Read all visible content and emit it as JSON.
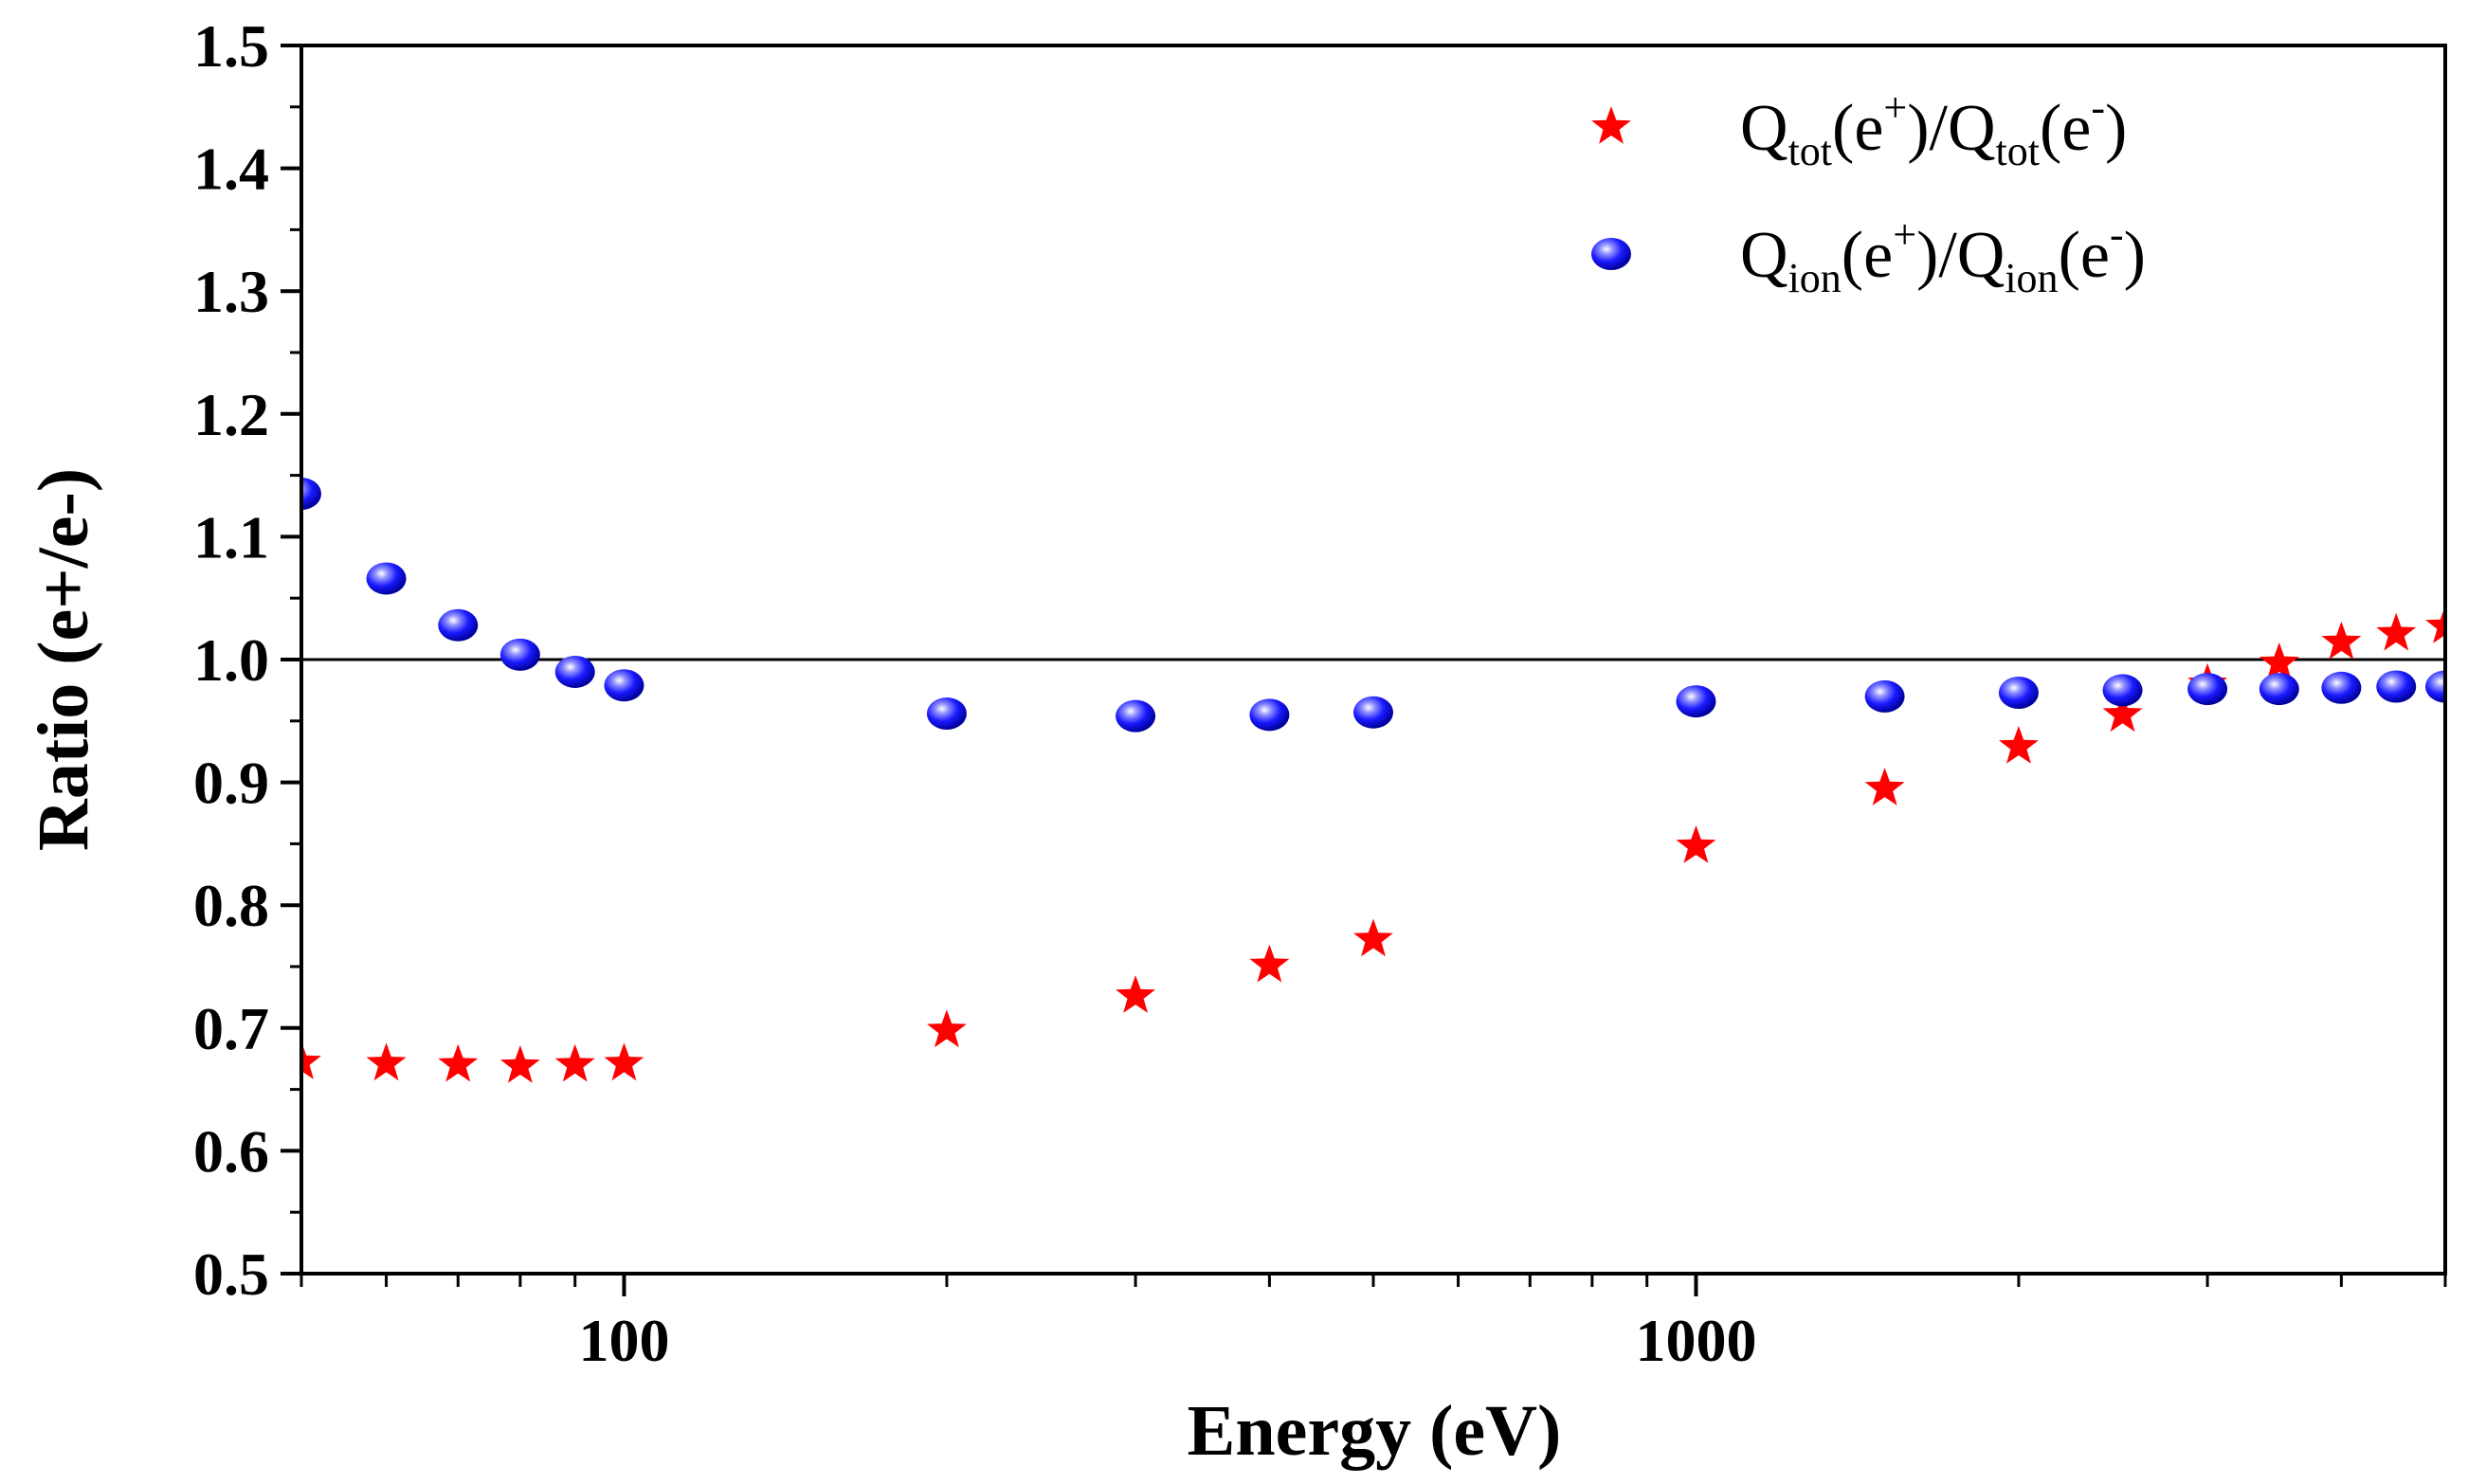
{
  "chart_data": {
    "type": "scatter",
    "title": "",
    "xlabel": "Energy (eV)",
    "ylabel": "Ratio (e+/e-)",
    "xscale": "log",
    "xlim": [
      50,
      5000
    ],
    "ylim": [
      0.5,
      1.5
    ],
    "x_ticks": [
      100,
      1000
    ],
    "x_tick_labels": [
      "100",
      "1000"
    ],
    "y_ticks": [
      0.5,
      0.6,
      0.7,
      0.8,
      0.9,
      1.0,
      1.1,
      1.2,
      1.3,
      1.4,
      1.5
    ],
    "y_tick_labels": [
      "0.5",
      "0.6",
      "0.7",
      "0.8",
      "0.9",
      "1.0",
      "1.1",
      "1.2",
      "1.3",
      "1.4",
      "1.5"
    ],
    "reference_line": 1.0,
    "legend_position": "top-right",
    "series": [
      {
        "name": "Qtot(e+)/Qtot(e-)",
        "legend": {
          "q": "Q",
          "sub": "tot",
          "open": "(e",
          "sup1": "+",
          "mid": ")/Q",
          "sub2": "tot",
          "open2": "(e",
          "sup2": "-",
          "close": ")"
        },
        "marker": "star",
        "color": "#ff0000",
        "x": [
          50,
          60,
          70,
          80,
          90,
          100,
          200,
          300,
          400,
          500,
          1000,
          1500,
          2000,
          2500,
          3000,
          3500,
          4000,
          4500,
          5000
        ],
        "y": [
          0.672,
          0.671,
          0.67,
          0.669,
          0.67,
          0.671,
          0.698,
          0.726,
          0.751,
          0.772,
          0.848,
          0.895,
          0.929,
          0.955,
          0.98,
          0.997,
          1.014,
          1.021,
          1.027
        ]
      },
      {
        "name": "Qion(e+)/Qion(e-)",
        "legend": {
          "q": "Q",
          "sub": "ion",
          "open": "(e",
          "sup1": "+",
          "mid": ")/Q",
          "sub2": "ion",
          "open2": "(e",
          "sup2": "-",
          "close": ")"
        },
        "marker": "sphere",
        "color": "#0000ff",
        "x": [
          50,
          60,
          70,
          80,
          90,
          100,
          200,
          300,
          400,
          500,
          1000,
          1500,
          2000,
          2500,
          3000,
          3500,
          4000,
          4500,
          5000
        ],
        "y": [
          1.135,
          1.066,
          1.028,
          1.004,
          0.99,
          0.979,
          0.956,
          0.954,
          0.955,
          0.957,
          0.966,
          0.97,
          0.973,
          0.975,
          0.976,
          0.976,
          0.977,
          0.978,
          0.978
        ]
      }
    ]
  }
}
